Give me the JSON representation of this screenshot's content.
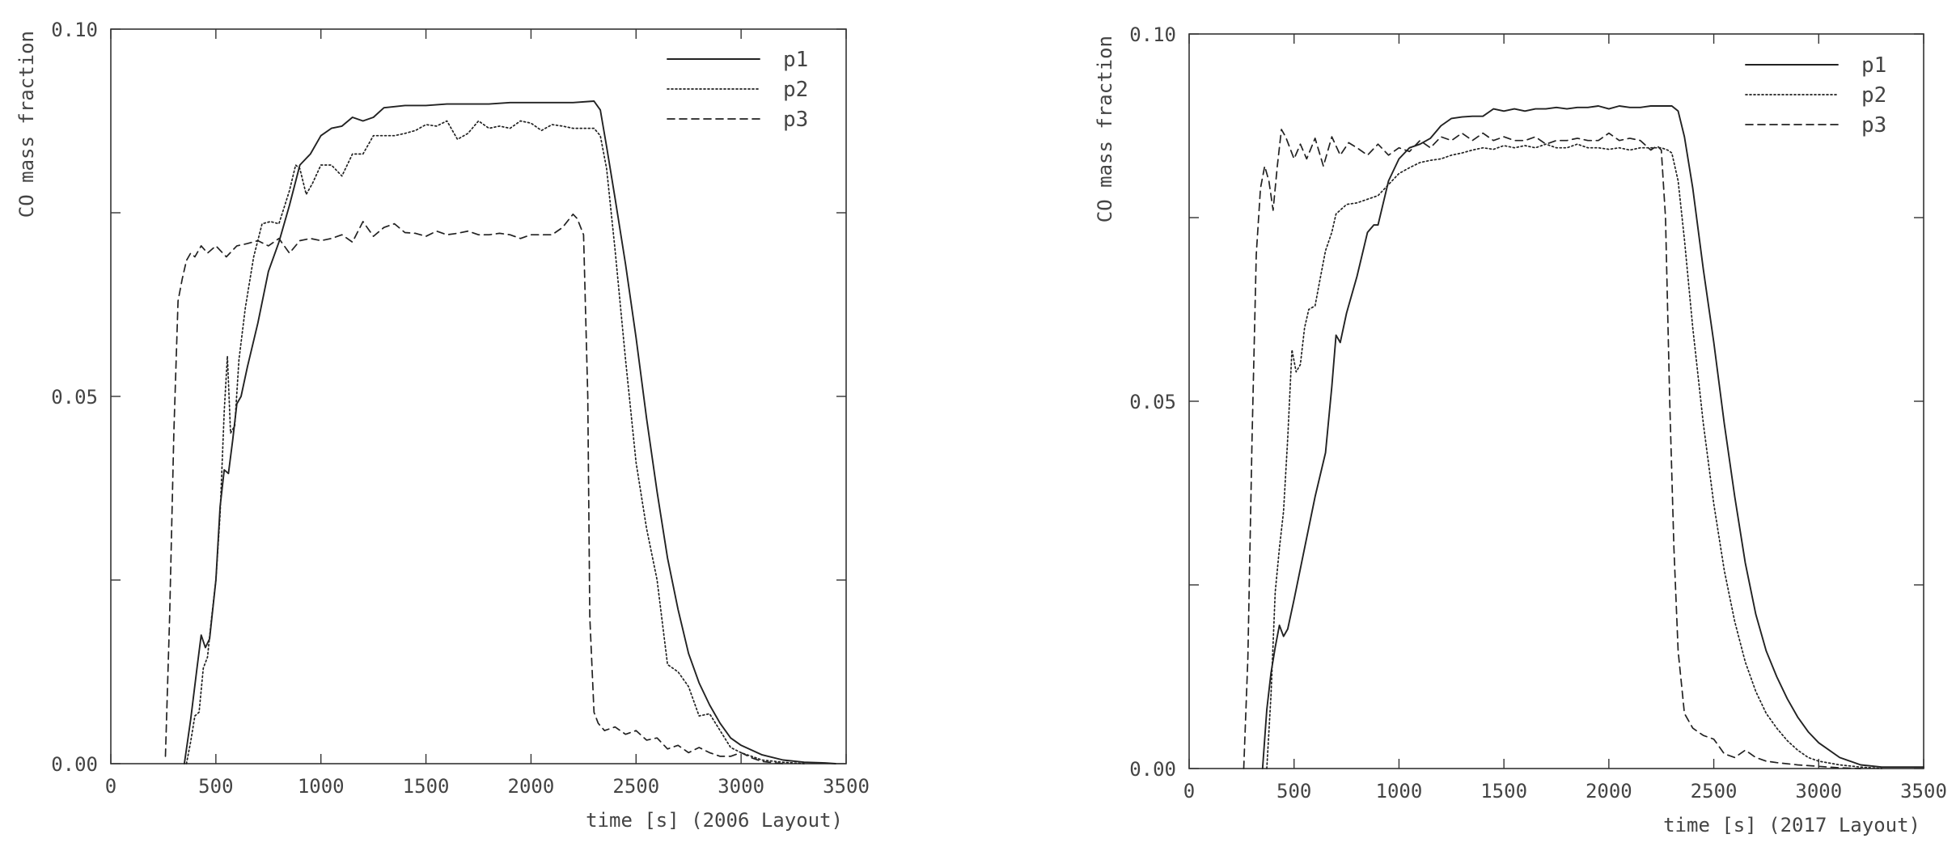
{
  "chart_data": [
    {
      "type": "line",
      "xlabel": "time [s] (2006 Layout)",
      "ylabel": "CO mass fraction",
      "xlim": [
        0,
        3500
      ],
      "ylim": [
        0,
        0.1
      ],
      "xticks": [
        "0",
        "500",
        "1000",
        "1500",
        "2000",
        "2500",
        "3000",
        "3500"
      ],
      "yticks": [
        "0.00",
        "0.05",
        "0.10"
      ],
      "legend_position": "top-right",
      "series": [
        {
          "name": "p1",
          "style": "solid",
          "x": [
            350,
            380,
            410,
            430,
            450,
            470,
            500,
            520,
            540,
            560,
            580,
            600,
            620,
            650,
            700,
            750,
            800,
            850,
            900,
            950,
            1000,
            1050,
            1100,
            1150,
            1200,
            1250,
            1300,
            1400,
            1500,
            1600,
            1700,
            1800,
            1900,
            2000,
            2100,
            2200,
            2300,
            2330,
            2360,
            2400,
            2450,
            2500,
            2550,
            2600,
            2650,
            2700,
            2750,
            2800,
            2850,
            2900,
            2950,
            3000,
            3100,
            3200,
            3300,
            3400,
            3450
          ],
          "y": [
            0.0,
            0.006,
            0.013,
            0.0175,
            0.0158,
            0.017,
            0.025,
            0.035,
            0.04,
            0.0395,
            0.044,
            0.049,
            0.05,
            0.054,
            0.06,
            0.067,
            0.071,
            0.076,
            0.0815,
            0.083,
            0.0855,
            0.0865,
            0.0868,
            0.088,
            0.0875,
            0.088,
            0.0893,
            0.0896,
            0.0896,
            0.0898,
            0.0898,
            0.0898,
            0.09,
            0.09,
            0.09,
            0.09,
            0.0902,
            0.089,
            0.084,
            0.077,
            0.068,
            0.058,
            0.047,
            0.037,
            0.028,
            0.021,
            0.015,
            0.011,
            0.008,
            0.0055,
            0.0035,
            0.0025,
            0.0012,
            0.0005,
            0.0002,
            0.0001,
            0.0
          ]
        },
        {
          "name": "p2",
          "style": "dotted",
          "x": [
            360,
            380,
            400,
            420,
            440,
            460,
            480,
            500,
            520,
            540,
            555,
            570,
            590,
            610,
            640,
            680,
            720,
            760,
            800,
            850,
            880,
            900,
            930,
            960,
            1000,
            1050,
            1100,
            1150,
            1200,
            1250,
            1300,
            1350,
            1400,
            1450,
            1500,
            1550,
            1600,
            1650,
            1700,
            1750,
            1800,
            1850,
            1900,
            1950,
            2000,
            2050,
            2100,
            2150,
            2200,
            2250,
            2300,
            2330,
            2360,
            2400,
            2450,
            2500,
            2550,
            2600,
            2650,
            2700,
            2750,
            2800,
            2850,
            2900,
            2950,
            3000,
            3100,
            3200,
            3300
          ],
          "y": [
            0.0,
            0.003,
            0.0065,
            0.007,
            0.013,
            0.0145,
            0.02,
            0.025,
            0.034,
            0.048,
            0.0555,
            0.045,
            0.046,
            0.055,
            0.062,
            0.069,
            0.0735,
            0.0738,
            0.0735,
            0.078,
            0.0815,
            0.081,
            0.0775,
            0.079,
            0.0815,
            0.0815,
            0.08,
            0.083,
            0.083,
            0.0855,
            0.0855,
            0.0855,
            0.0858,
            0.0862,
            0.087,
            0.0868,
            0.0875,
            0.085,
            0.0858,
            0.0875,
            0.0865,
            0.0868,
            0.0865,
            0.0875,
            0.0872,
            0.0862,
            0.087,
            0.0868,
            0.0865,
            0.0865,
            0.0865,
            0.0855,
            0.081,
            0.07,
            0.055,
            0.041,
            0.032,
            0.025,
            0.0135,
            0.0125,
            0.0105,
            0.0065,
            0.0068,
            0.0045,
            0.0022,
            0.0015,
            0.0005,
            0.0002,
            0.0
          ]
        },
        {
          "name": "p3",
          "style": "dashed",
          "x": [
            260,
            280,
            300,
            320,
            340,
            360,
            380,
            400,
            430,
            460,
            500,
            550,
            600,
            650,
            700,
            750,
            800,
            850,
            900,
            950,
            1000,
            1050,
            1100,
            1150,
            1200,
            1250,
            1300,
            1350,
            1400,
            1450,
            1500,
            1550,
            1600,
            1650,
            1700,
            1750,
            1800,
            1850,
            1900,
            1950,
            2000,
            2050,
            2100,
            2150,
            2200,
            2220,
            2250,
            2270,
            2280,
            2300,
            2320,
            2350,
            2400,
            2450,
            2500,
            2550,
            2600,
            2650,
            2700,
            2750,
            2800,
            2850,
            2900,
            2950,
            3000,
            3050,
            3100,
            3200
          ],
          "y": [
            0.001,
            0.02,
            0.045,
            0.063,
            0.066,
            0.0685,
            0.0695,
            0.069,
            0.0705,
            0.0695,
            0.0705,
            0.069,
            0.0705,
            0.0708,
            0.0712,
            0.0705,
            0.0715,
            0.0695,
            0.0712,
            0.0715,
            0.0712,
            0.0715,
            0.072,
            0.071,
            0.0738,
            0.0718,
            0.073,
            0.0735,
            0.0723,
            0.0722,
            0.0718,
            0.0725,
            0.072,
            0.0722,
            0.0725,
            0.072,
            0.072,
            0.0722,
            0.072,
            0.0715,
            0.072,
            0.072,
            0.072,
            0.073,
            0.0748,
            0.0742,
            0.072,
            0.05,
            0.02,
            0.007,
            0.0055,
            0.0045,
            0.005,
            0.004,
            0.0045,
            0.0032,
            0.0035,
            0.002,
            0.0025,
            0.0015,
            0.0022,
            0.0015,
            0.001,
            0.001,
            0.0015,
            0.0008,
            0.0003,
            0.0
          ]
        }
      ]
    },
    {
      "type": "line",
      "xlabel": "time [s] (2017 Layout)",
      "ylabel": "CO mass fraction",
      "xlim": [
        0,
        3500
      ],
      "ylim": [
        0,
        0.1
      ],
      "xticks": [
        "0",
        "500",
        "1000",
        "1500",
        "2000",
        "2500",
        "3000",
        "3500"
      ],
      "yticks": [
        "0.00",
        "0.05",
        "0.10"
      ],
      "legend_position": "top-right",
      "series": [
        {
          "name": "p1",
          "style": "solid",
          "x": [
            350,
            370,
            390,
            410,
            430,
            450,
            470,
            500,
            550,
            600,
            650,
            680,
            700,
            720,
            750,
            800,
            850,
            880,
            900,
            950,
            1000,
            1050,
            1100,
            1150,
            1200,
            1250,
            1300,
            1350,
            1400,
            1450,
            1500,
            1550,
            1600,
            1650,
            1700,
            1750,
            1800,
            1850,
            1900,
            1950,
            2000,
            2050,
            2100,
            2150,
            2200,
            2250,
            2300,
            2330,
            2360,
            2400,
            2450,
            2500,
            2550,
            2600,
            2650,
            2700,
            2750,
            2800,
            2850,
            2900,
            2950,
            3000,
            3100,
            3200,
            3300,
            3400,
            3500
          ],
          "y": [
            0.0,
            0.008,
            0.013,
            0.0165,
            0.0195,
            0.018,
            0.019,
            0.023,
            0.03,
            0.037,
            0.043,
            0.052,
            0.059,
            0.058,
            0.062,
            0.067,
            0.073,
            0.074,
            0.074,
            0.08,
            0.083,
            0.0845,
            0.085,
            0.0858,
            0.0875,
            0.0885,
            0.0887,
            0.0888,
            0.0888,
            0.0898,
            0.0895,
            0.0898,
            0.0895,
            0.0898,
            0.0898,
            0.09,
            0.0898,
            0.09,
            0.09,
            0.0902,
            0.0898,
            0.0902,
            0.09,
            0.09,
            0.0902,
            0.0902,
            0.0902,
            0.0895,
            0.086,
            0.079,
            0.068,
            0.058,
            0.047,
            0.037,
            0.028,
            0.021,
            0.016,
            0.0125,
            0.0095,
            0.007,
            0.005,
            0.0035,
            0.0015,
            0.0005,
            0.0002,
            0.0002,
            0.0002
          ]
        },
        {
          "name": "p2",
          "style": "dotted",
          "x": [
            370,
            390,
            410,
            430,
            450,
            470,
            490,
            510,
            530,
            550,
            570,
            600,
            620,
            650,
            680,
            700,
            750,
            800,
            850,
            900,
            950,
            1000,
            1050,
            1100,
            1150,
            1200,
            1250,
            1300,
            1350,
            1400,
            1450,
            1500,
            1550,
            1600,
            1650,
            1700,
            1750,
            1800,
            1850,
            1900,
            1950,
            2000,
            2050,
            2100,
            2150,
            2200,
            2250,
            2280,
            2300,
            2330,
            2360,
            2400,
            2450,
            2500,
            2550,
            2600,
            2650,
            2700,
            2750,
            2800,
            2850,
            2900,
            2950,
            3000,
            3100,
            3200,
            3300
          ],
          "y": [
            0.0,
            0.01,
            0.024,
            0.03,
            0.035,
            0.045,
            0.057,
            0.054,
            0.055,
            0.06,
            0.0625,
            0.063,
            0.066,
            0.0705,
            0.073,
            0.0755,
            0.0768,
            0.077,
            0.0775,
            0.078,
            0.0795,
            0.081,
            0.0818,
            0.0825,
            0.0828,
            0.083,
            0.0835,
            0.0838,
            0.0842,
            0.0845,
            0.0843,
            0.0848,
            0.0845,
            0.0848,
            0.0845,
            0.085,
            0.0845,
            0.0845,
            0.085,
            0.0845,
            0.0845,
            0.0843,
            0.0845,
            0.0842,
            0.0845,
            0.0845,
            0.0845,
            0.0842,
            0.0838,
            0.08,
            0.072,
            0.06,
            0.047,
            0.036,
            0.027,
            0.02,
            0.0145,
            0.0105,
            0.0075,
            0.0055,
            0.0038,
            0.0025,
            0.0015,
            0.001,
            0.0005,
            0.0002,
            0.0
          ]
        },
        {
          "name": "p3",
          "style": "dashed",
          "x": [
            260,
            280,
            300,
            320,
            340,
            360,
            380,
            400,
            420,
            440,
            460,
            480,
            500,
            530,
            560,
            600,
            640,
            680,
            720,
            760,
            800,
            850,
            900,
            950,
            1000,
            1050,
            1100,
            1150,
            1200,
            1250,
            1300,
            1350,
            1400,
            1450,
            1500,
            1550,
            1600,
            1650,
            1700,
            1750,
            1800,
            1850,
            1900,
            1950,
            2000,
            2050,
            2100,
            2150,
            2200,
            2230,
            2250,
            2270,
            2290,
            2310,
            2330,
            2360,
            2400,
            2450,
            2500,
            2550,
            2600,
            2650,
            2700,
            2750,
            2800,
            2900,
            3000,
            3100,
            3200
          ],
          "y": [
            0.0,
            0.015,
            0.045,
            0.07,
            0.079,
            0.082,
            0.08,
            0.076,
            0.082,
            0.087,
            0.086,
            0.0845,
            0.083,
            0.085,
            0.083,
            0.0858,
            0.082,
            0.086,
            0.0835,
            0.0852,
            0.0845,
            0.0835,
            0.085,
            0.0835,
            0.0845,
            0.084,
            0.0855,
            0.0845,
            0.086,
            0.0855,
            0.0865,
            0.0855,
            0.0865,
            0.0855,
            0.086,
            0.0855,
            0.0855,
            0.086,
            0.085,
            0.0855,
            0.0855,
            0.0858,
            0.0855,
            0.0855,
            0.0865,
            0.0855,
            0.0858,
            0.0855,
            0.0842,
            0.0848,
            0.0842,
            0.075,
            0.05,
            0.03,
            0.016,
            0.0075,
            0.0055,
            0.0045,
            0.004,
            0.002,
            0.0015,
            0.0025,
            0.0015,
            0.001,
            0.0008,
            0.0005,
            0.0003,
            0.0001,
            0.0
          ]
        }
      ]
    }
  ]
}
